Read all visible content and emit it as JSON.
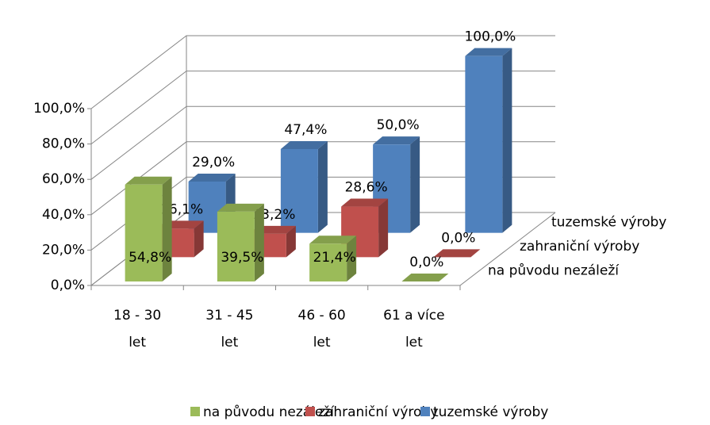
{
  "chart_data": {
    "type": "bar3d",
    "categories": [
      "18 - 30 let",
      "31 - 45 let",
      "46 - 60 let",
      "61 a více let"
    ],
    "series": [
      {
        "name": "na původu nezáleží",
        "color": "#9bbb59",
        "values": [
          54.8,
          39.5,
          21.4,
          0.0
        ],
        "value_labels": [
          "54,8%",
          "39,5%",
          "21,4%",
          "0,0%"
        ]
      },
      {
        "name": "zahraniční výroby",
        "color": "#c0504d",
        "values": [
          16.1,
          13.2,
          28.6,
          0.0
        ],
        "value_labels": [
          "16,1%",
          "13,2%",
          "28,6%",
          "0,0%"
        ]
      },
      {
        "name": "tuzemské výroby",
        "color": "#4f81bd",
        "values": [
          29.0,
          47.4,
          50.0,
          100.0
        ],
        "value_labels": [
          "29,0%",
          "47,4%",
          "50,0%",
          "100,0%"
        ]
      }
    ],
    "ylim": [
      0,
      100
    ],
    "yticks": [
      {
        "value": 0,
        "label": "0,0%"
      },
      {
        "value": 20,
        "label": "20,0%"
      },
      {
        "value": 40,
        "label": "40,0%"
      },
      {
        "value": 60,
        "label": "60,0%"
      },
      {
        "value": 80,
        "label": "80,0%"
      },
      {
        "value": 100,
        "label": "100,0%"
      }
    ],
    "grid": true,
    "legend": "bottom"
  }
}
